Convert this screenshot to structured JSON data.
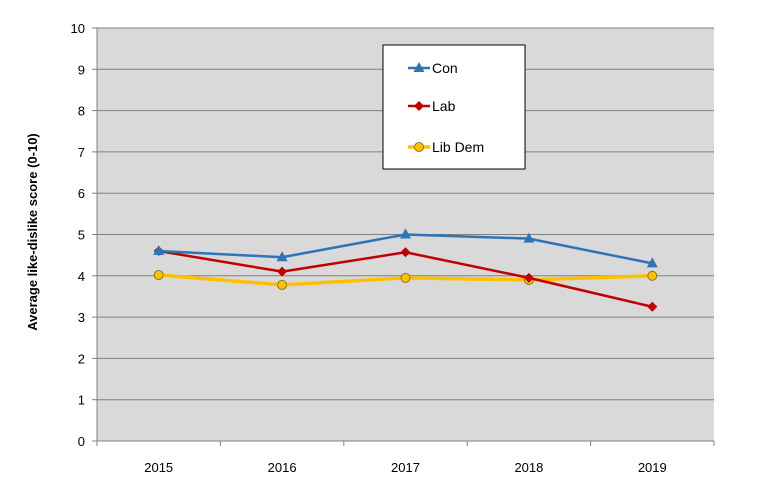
{
  "chart_data": {
    "type": "line",
    "title": "",
    "xlabel": "",
    "ylabel": "Average like-dislike score (0-10)",
    "x": [
      "2015",
      "2016",
      "2017",
      "2018",
      "2019"
    ],
    "ylim": [
      0,
      10
    ],
    "yticks": [
      "0",
      "1",
      "2",
      "3",
      "4",
      "5",
      "6",
      "7",
      "8",
      "9",
      "10"
    ],
    "grid": true,
    "legend_position": "top-center",
    "background_color": "#d9d9d9",
    "series": [
      {
        "name": "Con",
        "values": [
          4.6,
          4.45,
          5.0,
          4.9,
          4.3
        ],
        "color": "#2e75b6",
        "marker": "triangle"
      },
      {
        "name": "Lab",
        "values": [
          4.6,
          4.1,
          4.57,
          3.95,
          3.25
        ],
        "color": "#c00000",
        "marker": "diamond"
      },
      {
        "name": "Lib Dem",
        "values": [
          4.02,
          3.78,
          3.95,
          3.9,
          4.0
        ],
        "color": "#ffc000",
        "marker": "circle"
      }
    ]
  }
}
